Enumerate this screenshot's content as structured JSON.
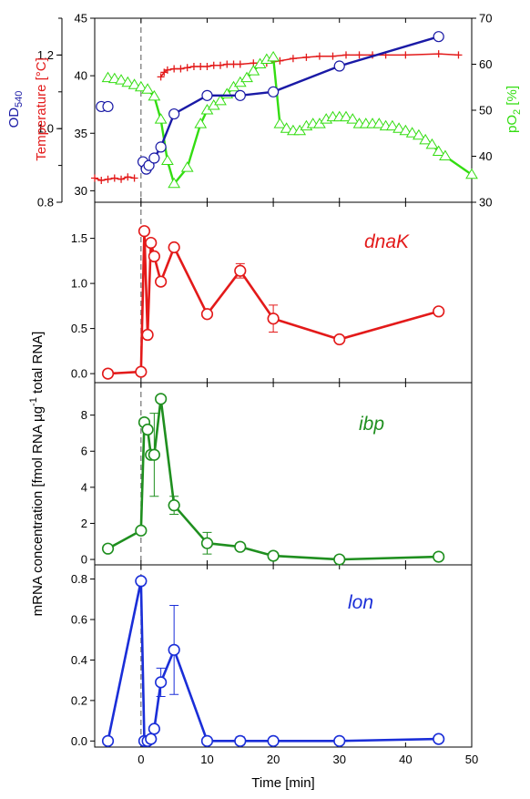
{
  "chart_data": [
    {
      "type": "line",
      "panel": "top",
      "x_axis": {
        "label": "Time [min]",
        "range": [
          -7,
          50
        ],
        "ticks": [
          0,
          10,
          20,
          30,
          40,
          50
        ]
      },
      "axes": {
        "left_outer": {
          "label_main": "OD",
          "label_sub": "540",
          "color": "#1a1aa6",
          "range": [
            0.8,
            1.3
          ],
          "ticks": [
            "0.8",
            "1.0",
            "1.2"
          ]
        },
        "left_inner": {
          "label": "Temperature [°C]",
          "color": "#e31a1a",
          "range": [
            29,
            45
          ],
          "ticks": [
            "30",
            "35",
            "40",
            "45"
          ]
        },
        "right": {
          "label_main": "pO",
          "label_sub": "2",
          "label_tail": " [%]",
          "color": "#33dd11",
          "range": [
            30,
            70
          ],
          "ticks": [
            "30",
            "40",
            "50",
            "60",
            "70"
          ]
        }
      },
      "series": [
        {
          "axis": "left_outer",
          "color": "#1a1aa6",
          "marker": "circle",
          "segments": [
            [
              [
                -6,
                1.06
              ],
              [
                -5,
                1.06
              ]
            ],
            [
              [
                0.3,
                0.91
              ],
              [
                0.8,
                0.89
              ],
              [
                1.2,
                0.9
              ],
              [
                2,
                0.92
              ],
              [
                3,
                0.95
              ],
              [
                5,
                1.04
              ],
              [
                10,
                1.09
              ],
              [
                15,
                1.09
              ],
              [
                20,
                1.1
              ],
              [
                30,
                1.17
              ],
              [
                45,
                1.25
              ]
            ]
          ]
        },
        {
          "axis": "left_inner",
          "color": "#e31a1a",
          "marker": "plus",
          "segments": [
            [
              [
                -7,
                31.1
              ],
              [
                -6,
                30.9
              ],
              [
                -5,
                31
              ],
              [
                -4,
                31.1
              ],
              [
                -3,
                31
              ],
              [
                -2,
                31.2
              ],
              [
                -1,
                31.1
              ]
            ],
            [
              [
                3,
                39.9
              ],
              [
                3.5,
                40.3
              ],
              [
                4,
                40.5
              ],
              [
                5,
                40.6
              ],
              [
                6,
                40.6
              ],
              [
                7,
                40.7
              ],
              [
                8,
                40.8
              ],
              [
                9,
                40.8
              ],
              [
                10,
                40.8
              ],
              [
                11,
                40.9
              ],
              [
                12,
                40.9
              ],
              [
                13,
                41
              ],
              [
                14,
                41
              ],
              [
                15,
                41
              ],
              [
                17,
                41.1
              ],
              [
                19,
                41.1
              ],
              [
                21,
                41.3
              ],
              [
                23,
                41.5
              ],
              [
                25,
                41.6
              ],
              [
                27,
                41.7
              ],
              [
                29,
                41.7
              ],
              [
                31,
                41.8
              ],
              [
                33,
                41.8
              ],
              [
                35,
                41.8
              ],
              [
                37,
                41.8
              ],
              [
                40,
                41.8
              ],
              [
                45,
                41.9
              ],
              [
                48,
                41.8
              ]
            ]
          ]
        },
        {
          "axis": "right",
          "color": "#33dd11",
          "marker": "triangle",
          "segments": [
            [
              [
                -5,
                57
              ],
              [
                -4,
                56.8
              ],
              [
                -3,
                56.5
              ],
              [
                -2,
                56
              ],
              [
                -1,
                55.5
              ],
              [
                0,
                55
              ],
              [
                1,
                54.5
              ],
              [
                2,
                53
              ],
              [
                3,
                48
              ],
              [
                4,
                39
              ],
              [
                5,
                34
              ],
              [
                7,
                37.5
              ],
              [
                9,
                47
              ],
              [
                10,
                50
              ],
              [
                11,
                51
              ],
              [
                12,
                52
              ],
              [
                13,
                53.5
              ],
              [
                14,
                55
              ],
              [
                15,
                56
              ],
              [
                16,
                57
              ],
              [
                17,
                58.5
              ],
              [
                18,
                60
              ],
              [
                19,
                61
              ],
              [
                20,
                61.5
              ],
              [
                21,
                47
              ],
              [
                22,
                46
              ],
              [
                23,
                45.5
              ],
              [
                24,
                45.5
              ],
              [
                25,
                46.5
              ],
              [
                26,
                47
              ],
              [
                27,
                47
              ],
              [
                28,
                48
              ],
              [
                29,
                48.5
              ],
              [
                30,
                48.5
              ],
              [
                31,
                48.5
              ],
              [
                32,
                48
              ],
              [
                33,
                47
              ],
              [
                34,
                47
              ],
              [
                35,
                47
              ],
              [
                36,
                47
              ],
              [
                37,
                46.5
              ],
              [
                38,
                46.5
              ],
              [
                39,
                46
              ],
              [
                40,
                45.5
              ],
              [
                41,
                45
              ],
              [
                42,
                44.5
              ],
              [
                43,
                43.5
              ],
              [
                44,
                42.5
              ],
              [
                45,
                41
              ],
              [
                46,
                40
              ],
              [
                50,
                36
              ]
            ]
          ]
        }
      ]
    },
    {
      "type": "line",
      "panel": "dnak",
      "annotation": "dnaK",
      "color": "#e31a1a",
      "y_range": [
        -0.1,
        1.9
      ],
      "y_ticks": [
        "0.0",
        "0.5",
        "1.0",
        "1.5"
      ],
      "x": [
        -5,
        0,
        0.5,
        1,
        1.5,
        2,
        3,
        5,
        10,
        15,
        20,
        30,
        45
      ],
      "y": [
        0,
        0.02,
        1.58,
        0.43,
        1.45,
        1.3,
        1.02,
        1.4,
        0.66,
        1.14,
        0.61,
        0.38,
        0.69
      ],
      "err": [
        0,
        0,
        0,
        0,
        0,
        0,
        0,
        0,
        0,
        0.08,
        0.15,
        0,
        0
      ]
    },
    {
      "type": "line",
      "panel": "ibp",
      "annotation": "ibp",
      "color": "#1f8f1f",
      "y_range": [
        -0.3,
        9.8
      ],
      "y_ticks": [
        "0",
        "2",
        "4",
        "6",
        "8"
      ],
      "x": [
        -5,
        0,
        0.5,
        1,
        1.5,
        2,
        3,
        5,
        10,
        15,
        20,
        30,
        45
      ],
      "y": [
        0.6,
        1.6,
        7.6,
        7.2,
        5.8,
        5.8,
        8.9,
        3,
        0.9,
        0.7,
        0.2,
        0,
        0.15
      ],
      "err": [
        0,
        0,
        0,
        0,
        0,
        2.3,
        0,
        0.5,
        0.6,
        0,
        0,
        0,
        0
      ]
    },
    {
      "type": "line",
      "panel": "lon",
      "annotation": "lon",
      "color": "#1a2ed8",
      "y_range": [
        -0.03,
        0.87
      ],
      "y_ticks": [
        "0.0",
        "0.2",
        "0.4",
        "0.6",
        "0.8"
      ],
      "x": [
        -5,
        0,
        0.5,
        1,
        1.5,
        2,
        3,
        5,
        10,
        15,
        20,
        30,
        45
      ],
      "y": [
        0,
        0.79,
        0,
        0,
        0.01,
        0.06,
        0.29,
        0.45,
        0,
        0,
        0,
        0,
        0.01
      ],
      "err": [
        0,
        0,
        0,
        0,
        0,
        0,
        0.07,
        0.22,
        0,
        0.02,
        0,
        0,
        0
      ]
    }
  ],
  "shared": {
    "ylabel_main": "mRNA concentration [fmol RNA µg",
    "ylabel_sup": "-1",
    "ylabel_tail": " total RNA]"
  }
}
